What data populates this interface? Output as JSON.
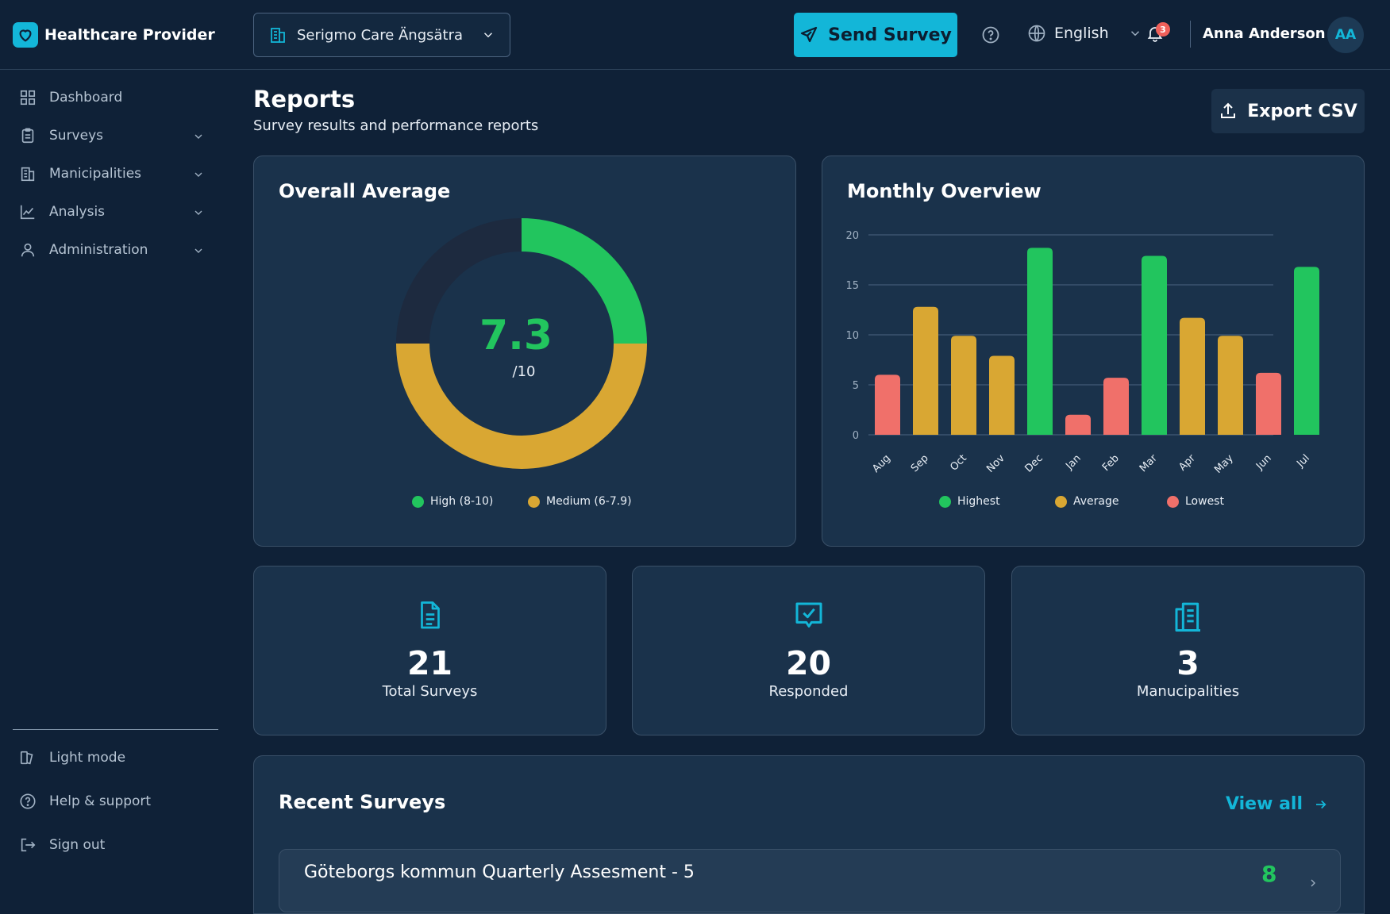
{
  "brand": {
    "name": "Healthcare Provider"
  },
  "header": {
    "org_select": "Serigmo Care Ängsätra",
    "send_survey": "Send Survey",
    "language": "English",
    "notification_count": "3",
    "user_name": "Anna Anderson",
    "user_initials": "AA"
  },
  "sidebar": {
    "items": [
      {
        "label": "Dashboard",
        "icon": "grid-icon"
      },
      {
        "label": "Surveys",
        "icon": "clipboard-icon"
      },
      {
        "label": "Manicipalities",
        "icon": "building-icon"
      },
      {
        "label": "Analysis",
        "icon": "line-chart-icon"
      },
      {
        "label": "Administration",
        "icon": "user-icon"
      }
    ],
    "bottom": [
      {
        "label": "Light mode",
        "icon": "theme-icon"
      },
      {
        "label": "Help & support",
        "icon": "help-icon"
      },
      {
        "label": "Sign out",
        "icon": "sign-out-icon"
      }
    ]
  },
  "page": {
    "title": "Reports",
    "subtitle": "Survey results and performance reports",
    "export": "Export CSV"
  },
  "overall": {
    "title": "Overall Average",
    "value": "7.3",
    "scale": "/10",
    "legend_high": "High (8-10)",
    "legend_medium": "Medium (6-7.9)"
  },
  "monthly": {
    "title": "Monthly Overview",
    "legend_highest": "Highest",
    "legend_average": "Average",
    "legend_lowest": "Lowest"
  },
  "colors": {
    "high": "#22c55e",
    "medium": "#d9a733",
    "low": "#f0706a",
    "accent": "#13b6d8",
    "track": "#1d2a3f"
  },
  "chart_data": [
    {
      "type": "pie",
      "title": "Overall Average",
      "slices": [
        {
          "name": "High (8-10)",
          "value": 25,
          "color": "#22c55e"
        },
        {
          "name": "Medium (6-7.9)",
          "value": 50,
          "color": "#d9a733"
        },
        {
          "name": "",
          "value": 25,
          "color": "#1d2a3f"
        }
      ],
      "center_value": 7.3
    },
    {
      "type": "bar",
      "title": "Monthly Overview",
      "categories": [
        "Aug",
        "Sep",
        "Oct",
        "Nov",
        "Dec",
        "Jan",
        "Feb",
        "Mar",
        "Apr",
        "May",
        "Jun",
        "Jul"
      ],
      "values": [
        6,
        12.8,
        9.9,
        7.9,
        18.7,
        2,
        5.7,
        17.9,
        11.7,
        9.9,
        6.2,
        16.8
      ],
      "levels": [
        "low",
        "average",
        "average",
        "average",
        "high",
        "low",
        "low",
        "high",
        "average",
        "average",
        "low",
        "high"
      ],
      "yticks": [
        0,
        5,
        10,
        15,
        20
      ],
      "ylim": [
        0,
        20
      ],
      "grid": true,
      "legend": [
        "Highest",
        "Average",
        "Lowest"
      ],
      "legend_position": "bottom"
    }
  ],
  "stats": [
    {
      "value": "21",
      "label": "Total Surveys",
      "icon": "document-icon"
    },
    {
      "value": "20",
      "label": "Responded",
      "icon": "message-check-icon"
    },
    {
      "value": "3",
      "label": "Manucipalities",
      "icon": "buildings-icon"
    }
  ],
  "recent": {
    "title": "Recent Surveys",
    "view_all": "View all",
    "rows": [
      {
        "name": "Göteborgs kommun Quarterly Assesment - 5",
        "score": "8"
      }
    ]
  }
}
